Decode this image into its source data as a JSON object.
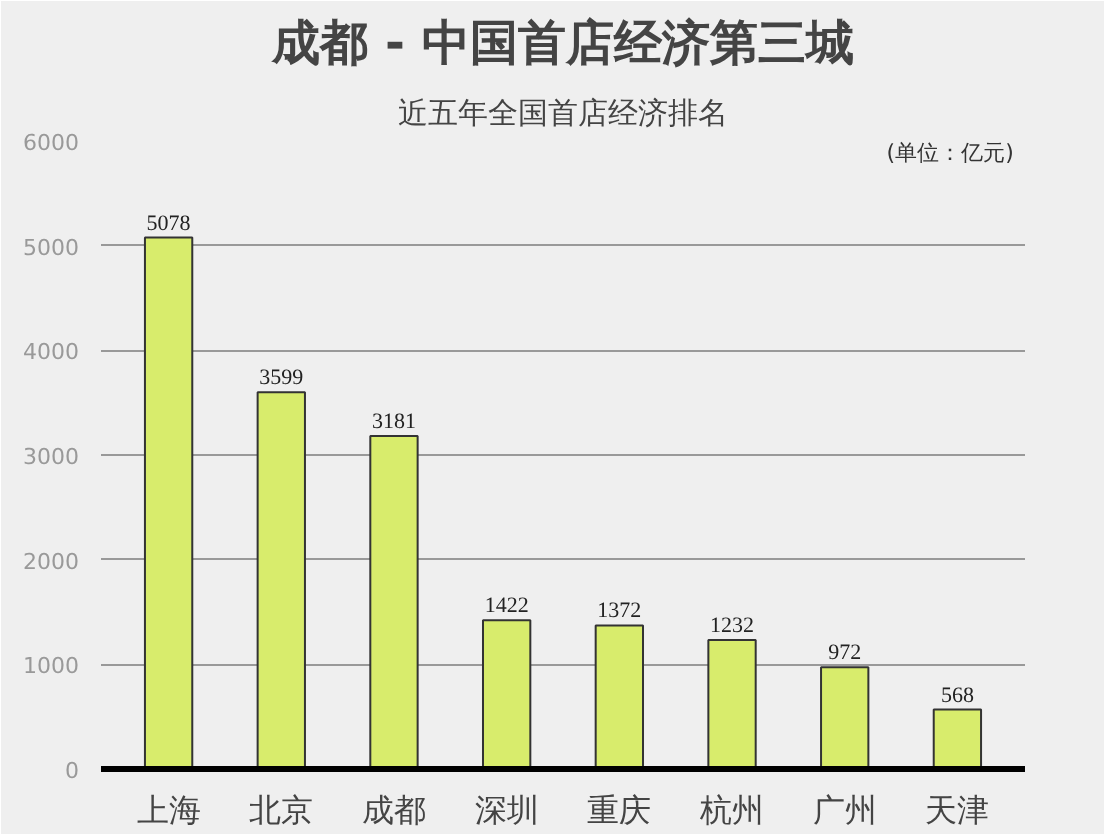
{
  "chart_data": {
    "type": "bar",
    "title": "成都 - 中国首店经济第三城",
    "subtitle": "近五年全国首店经济排名",
    "annotations": [
      "(单位：亿元)"
    ],
    "categories": [
      "上海",
      "北京",
      "成都",
      "深圳",
      "重庆",
      "杭州",
      "广州",
      "天津"
    ],
    "values": [
      5078,
      3599,
      3181,
      1422,
      1372,
      1232,
      972,
      568
    ],
    "color": "#d8ec6c",
    "ylim": [
      0,
      6000
    ],
    "yticks": [
      0,
      1000,
      2000,
      3000,
      4000,
      5000,
      6000
    ],
    "grid": "y",
    "data_labels": true
  }
}
